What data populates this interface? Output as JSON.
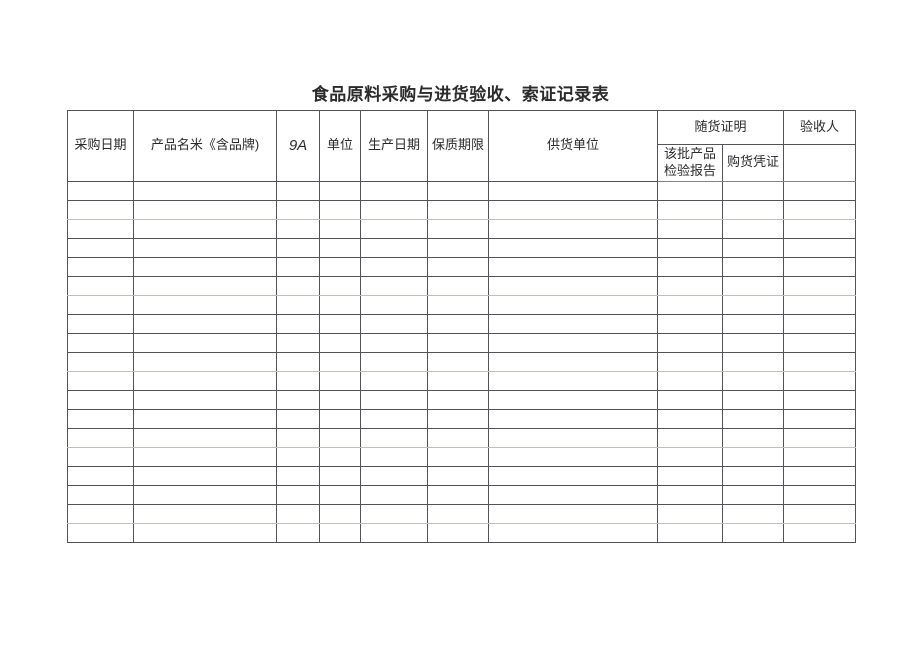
{
  "document": {
    "title": "食品原料采购与进货验收、索证记录表"
  },
  "table": {
    "headers": {
      "purchase_date": "采购日期",
      "product_name_brand": "产品名米《含品牌)",
      "col_9a": "9A",
      "unit": "单位",
      "production_date": "生产日期",
      "shelf_life": "保质期限",
      "supplier": "供货单位",
      "accompanying_cert": "随货证明",
      "batch_inspection_report": "该批产品检验报告",
      "purchase_voucher": "购货凭证",
      "inspector": "验收人",
      "inspector_sub": ""
    },
    "body": {
      "row_count": 19,
      "column_count": 10,
      "cell_value": ""
    },
    "colors": {
      "border_dark": "#55515a",
      "border_light": "#b9c3b3",
      "text": "#2b2b2b"
    }
  }
}
